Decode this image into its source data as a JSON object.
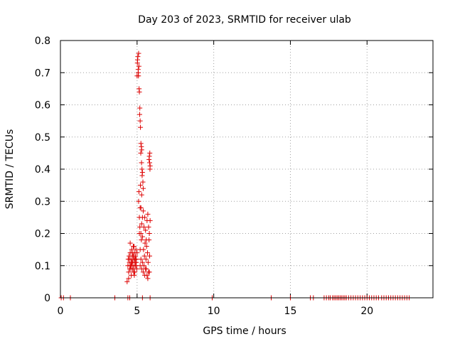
{
  "chart_data": {
    "type": "scatter",
    "title": "Day 203 of 2023, SRMTID for receiver ulab",
    "xlabel": "GPS time / hours",
    "ylabel": "SRMTID / TECUs",
    "xlim": [
      0,
      24.3
    ],
    "ylim": [
      0,
      0.8
    ],
    "grid": true,
    "marker": "+",
    "color": "#dd0000",
    "x_ticks": [
      0,
      5,
      10,
      15,
      20
    ],
    "x_tick_labels": [
      "0",
      "5",
      "10",
      "15",
      "20"
    ],
    "y_ticks": [
      0,
      0.1,
      0.2,
      0.3,
      0.4,
      0.5,
      0.6,
      0.7,
      0.8
    ],
    "y_tick_labels": [
      "0",
      "0.1",
      "0.2",
      "0.3",
      "0.4",
      "0.5",
      "0.6",
      "0.7",
      "0.8"
    ],
    "series": [
      {
        "name": "ulab",
        "x": [
          0.05,
          0.2,
          0.65,
          3.55,
          4.4,
          4.52,
          5.35,
          5.85,
          9.9,
          13.75,
          15.0,
          16.3,
          16.5,
          17.2,
          17.35,
          17.5,
          17.6,
          17.75,
          17.85,
          17.95,
          18.05,
          18.15,
          18.25,
          18.35,
          18.45,
          18.55,
          18.65,
          18.8,
          18.95,
          19.1,
          19.25,
          19.4,
          19.55,
          19.7,
          19.85,
          20.0,
          20.15,
          20.3,
          20.45,
          20.6,
          20.75,
          20.95,
          21.1,
          21.25,
          21.4,
          21.55,
          21.7,
          21.85,
          22.0,
          22.15,
          22.3,
          22.45,
          22.6,
          22.75,
          4.35,
          4.4,
          4.42,
          4.45,
          4.48,
          4.5,
          4.52,
          4.55,
          4.58,
          4.6,
          4.62,
          4.65,
          4.68,
          4.7,
          4.72,
          4.75,
          4.78,
          4.8,
          4.82,
          4.85,
          4.88,
          4.9,
          4.92,
          4.95,
          4.98,
          5.0,
          4.45,
          4.55,
          4.62,
          4.7,
          4.78,
          4.85,
          4.92,
          4.6,
          4.75,
          4.9,
          4.5,
          4.68,
          4.82,
          4.95,
          4.58,
          4.72,
          4.88,
          4.65,
          4.8,
          5.0,
          5.02,
          5.05,
          5.08,
          5.1,
          5.12,
          5.15,
          5.18,
          5.03,
          5.07,
          5.13,
          5.17,
          5.09,
          5.2,
          5.22,
          5.25,
          5.28,
          5.3,
          5.32,
          5.35,
          5.38,
          5.4,
          5.24,
          5.29,
          5.33,
          5.15,
          5.2,
          5.25,
          5.3,
          5.35,
          5.4,
          5.45,
          5.5,
          5.55,
          5.6,
          5.65,
          5.7,
          5.75,
          5.8,
          5.85,
          5.42,
          5.48,
          5.52,
          5.58,
          5.62,
          5.68,
          5.72,
          5.78,
          5.82,
          5.2,
          5.3,
          5.4,
          5.5,
          5.6,
          5.7,
          5.8,
          5.25,
          5.35,
          5.45,
          5.55,
          5.65,
          5.75,
          5.1,
          5.2,
          5.15,
          5.25,
          5.3,
          5.35,
          5.22,
          5.12,
          5.28,
          5.18,
          5.8,
          5.82,
          5.85,
          5.78,
          5.84,
          5.83
        ],
        "y": [
          0,
          0,
          0,
          0,
          0,
          0,
          0,
          0,
          0,
          0,
          0,
          0,
          0,
          0,
          0,
          0,
          0,
          0,
          0,
          0,
          0,
          0,
          0,
          0,
          0,
          0,
          0,
          0,
          0,
          0,
          0,
          0,
          0,
          0,
          0,
          0,
          0,
          0,
          0,
          0,
          0,
          0,
          0,
          0,
          0,
          0,
          0,
          0,
          0,
          0,
          0,
          0,
          0,
          0,
          0.05,
          0.1,
          0.12,
          0.08,
          0.13,
          0.11,
          0.09,
          0.14,
          0.1,
          0.12,
          0.07,
          0.15,
          0.11,
          0.13,
          0.09,
          0.16,
          0.12,
          0.1,
          0.14,
          0.08,
          0.11,
          0.13,
          0.1,
          0.12,
          0.09,
          0.14,
          0.06,
          0.17,
          0.1,
          0.11,
          0.08,
          0.12,
          0.15,
          0.09,
          0.13,
          0.1,
          0.12,
          0.14,
          0.07,
          0.11,
          0.1,
          0.09,
          0.12,
          0.11,
          0.16,
          0.69,
          0.73,
          0.75,
          0.7,
          0.76,
          0.72,
          0.64,
          0.59,
          0.74,
          0.71,
          0.65,
          0.57,
          0.69,
          0.55,
          0.53,
          0.48,
          0.47,
          0.46,
          0.4,
          0.39,
          0.36,
          0.34,
          0.45,
          0.42,
          0.38,
          0.25,
          0.28,
          0.2,
          0.23,
          0.19,
          0.27,
          0.22,
          0.25,
          0.21,
          0.18,
          0.24,
          0.26,
          0.22,
          0.2,
          0.24,
          0.15,
          0.13,
          0.17,
          0.12,
          0.16,
          0.14,
          0.11,
          0.18,
          0.13,
          0.1,
          0.09,
          0.08,
          0.07,
          0.09,
          0.06,
          0.08,
          0.12,
          0.11,
          0.1,
          0.09,
          0.07,
          0.08,
          0.3,
          0.15,
          0.2,
          0.28,
          0.32,
          0.25,
          0.35,
          0.33,
          0.18,
          0.22,
          0.44,
          0.42,
          0.41,
          0.43,
          0.4,
          0.45
        ]
      }
    ]
  }
}
